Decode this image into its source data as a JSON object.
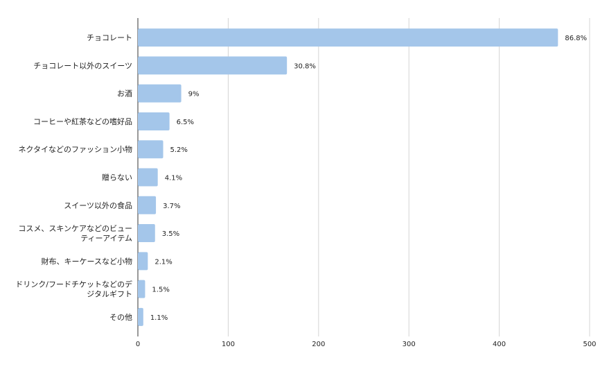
{
  "chart_data": {
    "type": "bar",
    "orientation": "horizontal",
    "categories": [
      [
        "チョコレート"
      ],
      [
        "チョコレート以外のスイーツ"
      ],
      [
        "お酒"
      ],
      [
        "コーヒーや紅茶などの嗜好品"
      ],
      [
        "ネクタイなどのファッション小物"
      ],
      [
        "贈らない"
      ],
      [
        "スイーツ以外の食品"
      ],
      [
        "コスメ、スキンケアなどのビュー",
        "ティーアイテム"
      ],
      [
        "財布、キーケースなど小物"
      ],
      [
        "ドリンク/フードチケットなどのデ",
        "ジタルギフト"
      ],
      [
        "その他"
      ]
    ],
    "values": [
      465,
      165,
      48,
      35,
      28,
      22,
      20,
      19,
      11,
      8,
      6
    ],
    "data_labels": [
      "86.8%",
      "30.8%",
      "9%",
      "6.5%",
      "5.2%",
      "4.1%",
      "3.7%",
      "3.5%",
      "2.1%",
      "1.5%",
      "1.1%"
    ],
    "xlim": [
      0,
      500
    ],
    "x_ticks": [
      "0",
      "100",
      "200",
      "300",
      "400",
      "500"
    ],
    "grid": true,
    "bar_color": "#a4c6ea",
    "title": "",
    "xlabel": "",
    "ylabel": ""
  }
}
